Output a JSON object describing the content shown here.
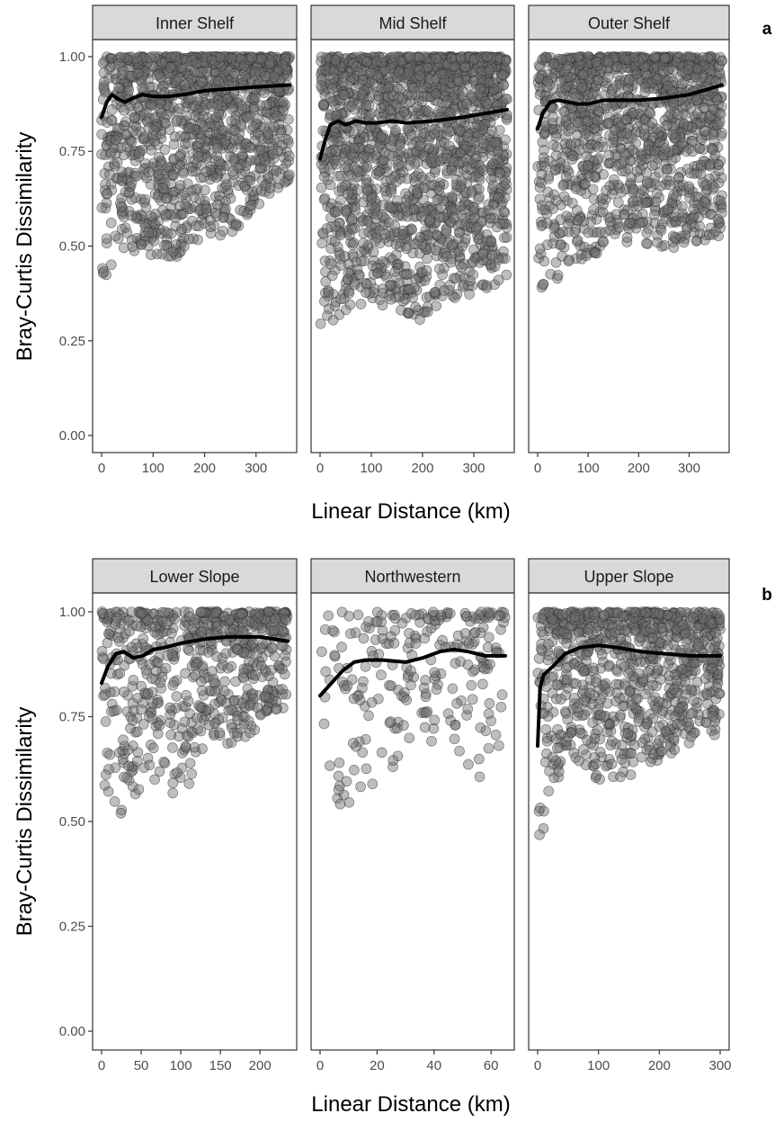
{
  "chart_data": [
    {
      "type": "scatter",
      "panel_label": "a",
      "ylabel": "Bray-Curtis Dissimilarity",
      "xlabel": "Linear Distance (km)",
      "ylim": [
        0,
        1
      ],
      "yticks": [
        0.0,
        0.25,
        0.5,
        0.75,
        1.0
      ],
      "ytick_labels": [
        "0.00",
        "0.25",
        "0.50",
        "0.75",
        "1.00"
      ],
      "facets": [
        {
          "name": "Inner Shelf",
          "xlim": [
            0,
            365
          ],
          "xticks": [
            0,
            100,
            200,
            300
          ],
          "points": {
            "count": 1300,
            "lower": [
              [
                0,
                0.35
              ],
              [
                20,
                0.45
              ],
              [
                60,
                0.48
              ],
              [
                150,
                0.47
              ],
              [
                200,
                0.52
              ],
              [
                250,
                0.53
              ],
              [
                300,
                0.6
              ],
              [
                365,
                0.67
              ]
            ]
          },
          "smooth": [
            [
              0,
              0.84
            ],
            [
              10,
              0.88
            ],
            [
              20,
              0.9
            ],
            [
              30,
              0.89
            ],
            [
              45,
              0.88
            ],
            [
              60,
              0.89
            ],
            [
              80,
              0.9
            ],
            [
              100,
              0.895
            ],
            [
              130,
              0.895
            ],
            [
              160,
              0.9
            ],
            [
              200,
              0.91
            ],
            [
              250,
              0.915
            ],
            [
              300,
              0.92
            ],
            [
              365,
              0.925
            ]
          ]
        },
        {
          "name": "Mid Shelf",
          "xlim": [
            0,
            365
          ],
          "xticks": [
            0,
            100,
            200,
            300
          ],
          "points": {
            "count": 1800,
            "lower": [
              [
                0,
                0.24
              ],
              [
                20,
                0.28
              ],
              [
                50,
                0.33
              ],
              [
                120,
                0.34
              ],
              [
                190,
                0.3
              ],
              [
                250,
                0.35
              ],
              [
                320,
                0.38
              ],
              [
                365,
                0.42
              ]
            ]
          },
          "smooth": [
            [
              0,
              0.73
            ],
            [
              10,
              0.78
            ],
            [
              20,
              0.82
            ],
            [
              35,
              0.83
            ],
            [
              50,
              0.82
            ],
            [
              70,
              0.83
            ],
            [
              90,
              0.825
            ],
            [
              110,
              0.825
            ],
            [
              140,
              0.83
            ],
            [
              170,
              0.825
            ],
            [
              220,
              0.83
            ],
            [
              280,
              0.84
            ],
            [
              365,
              0.86
            ]
          ]
        },
        {
          "name": "Outer Shelf",
          "xlim": [
            0,
            365
          ],
          "xticks": [
            0,
            100,
            200,
            300
          ],
          "points": {
            "count": 1300,
            "lower": [
              [
                0,
                0.38
              ],
              [
                30,
                0.4
              ],
              [
                60,
                0.44
              ],
              [
                100,
                0.47
              ],
              [
                150,
                0.5
              ],
              [
                200,
                0.51
              ],
              [
                250,
                0.49
              ],
              [
                300,
                0.5
              ],
              [
                365,
                0.52
              ]
            ]
          },
          "smooth": [
            [
              0,
              0.81
            ],
            [
              10,
              0.85
            ],
            [
              25,
              0.88
            ],
            [
              40,
              0.885
            ],
            [
              60,
              0.88
            ],
            [
              80,
              0.875
            ],
            [
              100,
              0.875
            ],
            [
              130,
              0.885
            ],
            [
              160,
              0.885
            ],
            [
              200,
              0.885
            ],
            [
              250,
              0.89
            ],
            [
              300,
              0.9
            ],
            [
              340,
              0.915
            ],
            [
              365,
              0.925
            ]
          ]
        }
      ]
    },
    {
      "type": "scatter",
      "panel_label": "b",
      "ylabel": "Bray-Curtis Dissimilarity",
      "xlabel": "Linear Distance (km)",
      "ylim": [
        0,
        1
      ],
      "yticks": [
        0.0,
        0.25,
        0.5,
        0.75,
        1.0
      ],
      "ytick_labels": [
        "0.00",
        "0.25",
        "0.50",
        "0.75",
        "1.00"
      ],
      "facets": [
        {
          "name": "Lower Slope",
          "xlim": [
            0,
            235
          ],
          "xticks": [
            0,
            50,
            100,
            150,
            200
          ],
          "points": {
            "count": 650,
            "lower": [
              [
                0,
                0.58
              ],
              [
                20,
                0.49
              ],
              [
                40,
                0.56
              ],
              [
                60,
                0.58
              ],
              [
                95,
                0.53
              ],
              [
                130,
                0.64
              ],
              [
                160,
                0.68
              ],
              [
                200,
                0.72
              ],
              [
                235,
                0.78
              ]
            ]
          },
          "smooth": [
            [
              0,
              0.83
            ],
            [
              8,
              0.87
            ],
            [
              18,
              0.9
            ],
            [
              28,
              0.905
            ],
            [
              40,
              0.89
            ],
            [
              52,
              0.895
            ],
            [
              65,
              0.91
            ],
            [
              80,
              0.915
            ],
            [
              100,
              0.925
            ],
            [
              130,
              0.935
            ],
            [
              160,
              0.94
            ],
            [
              200,
              0.94
            ],
            [
              235,
              0.93
            ]
          ]
        },
        {
          "name": "Northwestern",
          "xlim": [
            0,
            65
          ],
          "xticks": [
            0,
            20,
            40,
            60
          ],
          "points": {
            "count": 240,
            "lower": [
              [
                0,
                0.54
              ],
              [
                8,
                0.53
              ],
              [
                16,
                0.56
              ],
              [
                30,
                0.64
              ],
              [
                40,
                0.68
              ],
              [
                53,
                0.58
              ],
              [
                65,
                0.68
              ]
            ]
          },
          "smooth": [
            [
              0,
              0.8
            ],
            [
              4,
              0.83
            ],
            [
              8,
              0.86
            ],
            [
              12,
              0.88
            ],
            [
              16,
              0.885
            ],
            [
              22,
              0.885
            ],
            [
              30,
              0.88
            ],
            [
              36,
              0.89
            ],
            [
              42,
              0.905
            ],
            [
              47,
              0.91
            ],
            [
              52,
              0.905
            ],
            [
              58,
              0.895
            ],
            [
              65,
              0.895
            ]
          ]
        },
        {
          "name": "Upper Slope",
          "xlim": [
            0,
            300
          ],
          "xticks": [
            0,
            100,
            200,
            300
          ],
          "points": {
            "count": 900,
            "lower": [
              [
                0,
                0.4
              ],
              [
                10,
                0.45
              ],
              [
                25,
                0.55
              ],
              [
                50,
                0.67
              ],
              [
                110,
                0.58
              ],
              [
                180,
                0.63
              ],
              [
                230,
                0.66
              ],
              [
                260,
                0.7
              ],
              [
                300,
                0.7
              ]
            ]
          },
          "smooth": [
            [
              0,
              0.68
            ],
            [
              4,
              0.82
            ],
            [
              10,
              0.85
            ],
            [
              25,
              0.87
            ],
            [
              45,
              0.9
            ],
            [
              70,
              0.915
            ],
            [
              100,
              0.92
            ],
            [
              130,
              0.915
            ],
            [
              170,
              0.905
            ],
            [
              210,
              0.9
            ],
            [
              250,
              0.895
            ],
            [
              300,
              0.895
            ]
          ]
        }
      ]
    }
  ]
}
